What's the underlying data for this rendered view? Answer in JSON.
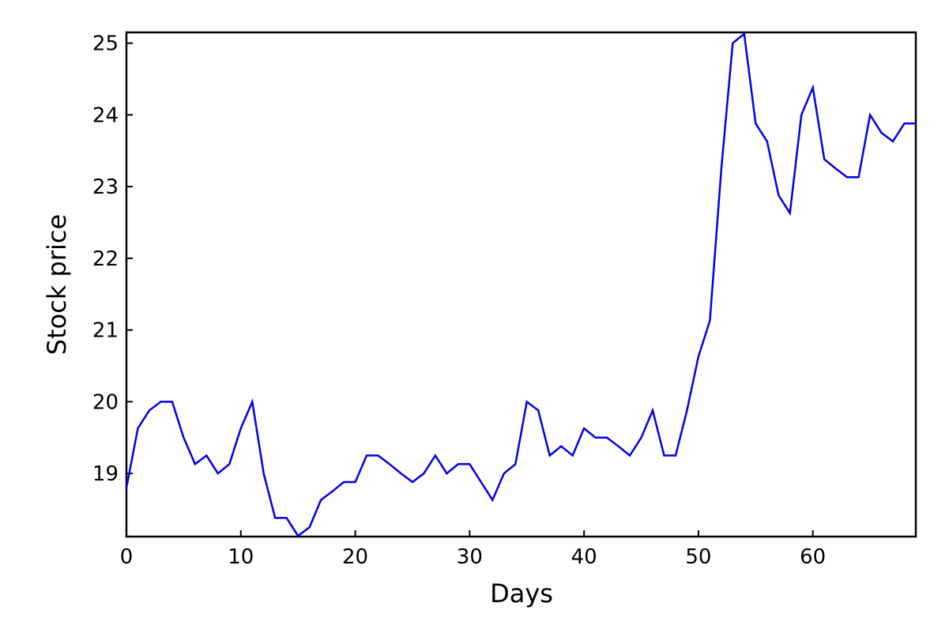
{
  "chart_data": {
    "type": "line",
    "title": "",
    "xlabel": "Days",
    "ylabel": "Stock price",
    "xlim": [
      0,
      69
    ],
    "ylim": [
      18.12,
      25.15
    ],
    "xticks": [
      0,
      10,
      20,
      30,
      40,
      50,
      60
    ],
    "yticks": [
      19,
      20,
      21,
      22,
      23,
      24,
      25
    ],
    "grid": false,
    "legend": "none",
    "series": [
      {
        "color": "#0000ee",
        "x": [
          0,
          1,
          2,
          3,
          4,
          5,
          6,
          7,
          8,
          9,
          10,
          11,
          12,
          13,
          14,
          15,
          16,
          17,
          18,
          19,
          20,
          21,
          22,
          23,
          24,
          25,
          26,
          27,
          28,
          29,
          30,
          31,
          32,
          33,
          34,
          35,
          36,
          37,
          38,
          39,
          40,
          41,
          42,
          43,
          44,
          45,
          46,
          47,
          48,
          49,
          50,
          51,
          52,
          53,
          54,
          55,
          56,
          57,
          58,
          59,
          60,
          61,
          62,
          63,
          64,
          65,
          66,
          67,
          68,
          69
        ],
        "values": [
          18.8,
          19.63,
          19.88,
          20.0,
          20.0,
          19.5,
          19.13,
          19.25,
          19.0,
          19.13,
          19.63,
          20.0,
          19.0,
          18.38,
          18.38,
          18.13,
          18.25,
          18.63,
          18.75,
          18.88,
          18.88,
          19.25,
          19.25,
          19.13,
          19.0,
          18.88,
          19.0,
          19.25,
          19.0,
          19.13,
          19.13,
          18.88,
          18.63,
          19.0,
          19.13,
          20.0,
          19.88,
          19.25,
          19.38,
          19.25,
          19.63,
          19.5,
          19.5,
          19.38,
          19.25,
          19.5,
          19.88,
          19.25,
          19.25,
          19.88,
          20.63,
          21.13,
          23.25,
          25.0,
          25.13,
          23.88,
          23.63,
          22.88,
          22.63,
          24.0,
          24.38,
          23.38,
          23.25,
          23.13,
          23.13,
          24.0,
          23.75,
          23.63,
          23.88,
          23.88
        ]
      }
    ]
  }
}
